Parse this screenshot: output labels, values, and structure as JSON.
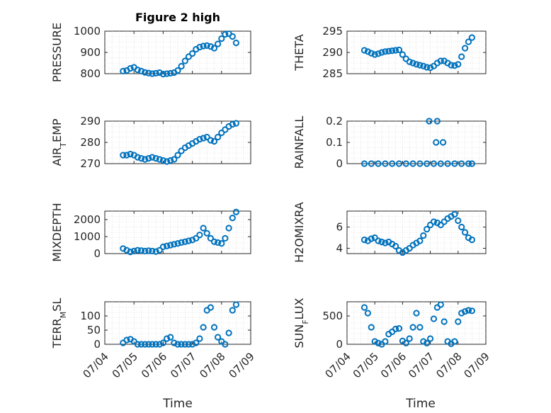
{
  "figure": {
    "title": "Figure 2 high"
  },
  "x_axis": {
    "label": "Time",
    "range": [
      "07/04",
      "07/09"
    ],
    "ticks": [
      "07/04",
      "07/05",
      "07/06",
      "07/07",
      "07/08",
      "07/09"
    ]
  },
  "marker_color": "#0072BD",
  "chart_data": [
    {
      "type": "scatter",
      "ylabel": "PRESSURE",
      "ylim": [
        800,
        1000
      ],
      "yticks": [
        800,
        900,
        1000
      ],
      "grid": true,
      "x": [
        "07/04 15:00",
        "07/04 18:00",
        "07/04 21:00",
        "07/05 00:00",
        "07/05 03:00",
        "07/05 06:00",
        "07/05 09:00",
        "07/05 12:00",
        "07/05 15:00",
        "07/05 18:00",
        "07/05 21:00",
        "07/06 00:00",
        "07/06 03:00",
        "07/06 06:00",
        "07/06 09:00",
        "07/06 12:00",
        "07/06 15:00",
        "07/06 18:00",
        "07/06 21:00",
        "07/07 00:00",
        "07/07 03:00",
        "07/07 06:00",
        "07/07 09:00",
        "07/07 12:00",
        "07/07 15:00",
        "07/07 18:00",
        "07/07 21:00",
        "07/08 00:00",
        "07/08 03:00",
        "07/08 06:00",
        "07/08 09:00",
        "07/08 12:00"
      ],
      "y": [
        812,
        815,
        825,
        830,
        818,
        812,
        806,
        803,
        800,
        802,
        805,
        798,
        800,
        802,
        805,
        815,
        835,
        860,
        880,
        895,
        915,
        925,
        930,
        932,
        928,
        920,
        940,
        965,
        985,
        988,
        975,
        945
      ]
    },
    {
      "type": "scatter",
      "ylabel": "THETA",
      "ylim": [
        285,
        295
      ],
      "yticks": [
        285,
        290,
        295
      ],
      "grid": true,
      "x": [
        "07/04 15:00",
        "07/04 18:00",
        "07/04 21:00",
        "07/05 00:00",
        "07/05 03:00",
        "07/05 06:00",
        "07/05 09:00",
        "07/05 12:00",
        "07/05 15:00",
        "07/05 18:00",
        "07/05 21:00",
        "07/06 00:00",
        "07/06 03:00",
        "07/06 06:00",
        "07/06 09:00",
        "07/06 12:00",
        "07/06 15:00",
        "07/06 18:00",
        "07/06 21:00",
        "07/07 00:00",
        "07/07 03:00",
        "07/07 06:00",
        "07/07 09:00",
        "07/07 12:00",
        "07/07 15:00",
        "07/07 18:00",
        "07/07 21:00",
        "07/08 00:00",
        "07/08 03:00",
        "07/08 06:00",
        "07/08 09:00",
        "07/08 12:00"
      ],
      "y": [
        290.5,
        290.2,
        289.8,
        289.5,
        289.7,
        290.0,
        290.2,
        290.3,
        290.4,
        290.5,
        290.6,
        289.5,
        288.5,
        287.8,
        287.5,
        287.2,
        287.0,
        286.8,
        286.5,
        286.4,
        286.8,
        287.5,
        288.0,
        288.0,
        287.5,
        287.0,
        286.9,
        287.2,
        289.0,
        291.0,
        292.5,
        293.5
      ]
    },
    {
      "type": "scatter",
      "ylabel": "AIR_TEMP",
      "ylim": [
        270,
        290
      ],
      "yticks": [
        270,
        280,
        290
      ],
      "grid": true,
      "x": [
        "07/04 15:00",
        "07/04 18:00",
        "07/04 21:00",
        "07/05 00:00",
        "07/05 03:00",
        "07/05 06:00",
        "07/05 09:00",
        "07/05 12:00",
        "07/05 15:00",
        "07/05 18:00",
        "07/05 21:00",
        "07/06 00:00",
        "07/06 03:00",
        "07/06 06:00",
        "07/06 09:00",
        "07/06 12:00",
        "07/06 15:00",
        "07/06 18:00",
        "07/06 21:00",
        "07/07 00:00",
        "07/07 03:00",
        "07/07 06:00",
        "07/07 09:00",
        "07/07 12:00",
        "07/07 15:00",
        "07/07 18:00",
        "07/07 21:00",
        "07/08 00:00",
        "07/08 03:00",
        "07/08 06:00",
        "07/08 09:00",
        "07/08 12:00"
      ],
      "y": [
        274,
        274,
        274.5,
        274,
        273,
        272.5,
        272,
        272.5,
        273,
        272.5,
        272,
        271.5,
        271,
        271.5,
        272,
        274,
        276,
        277.5,
        278.5,
        279.5,
        280.5,
        281.5,
        282,
        282.5,
        281,
        280.5,
        282.5,
        284.5,
        286,
        287.5,
        288.5,
        289
      ]
    },
    {
      "type": "scatter",
      "ylabel": "RAINFALL",
      "ylim": [
        0,
        0.2
      ],
      "yticks": [
        0,
        0.1,
        0.2
      ],
      "grid": true,
      "x": [
        "07/04 15:00",
        "07/04 21:00",
        "07/05 03:00",
        "07/05 09:00",
        "07/05 15:00",
        "07/05 21:00",
        "07/06 03:00",
        "07/06 09:00",
        "07/06 15:00",
        "07/06 21:00",
        "07/07 03:00",
        "07/07 09:00",
        "07/07 15:00",
        "07/07 21:00",
        "07/08 03:00",
        "07/08 09:00",
        "07/08 12:00",
        "07/06 23:00",
        "07/07 05:00",
        "07/07 06:00",
        "07/07 11:00"
      ],
      "y": [
        0,
        0,
        0,
        0,
        0,
        0,
        0,
        0,
        0,
        0,
        0,
        0,
        0,
        0,
        0,
        0,
        0,
        0.2,
        0.1,
        0.2,
        0.1
      ]
    },
    {
      "type": "scatter",
      "ylabel": "MIXDEPTH",
      "ylim": [
        0,
        2500
      ],
      "yticks": [
        0,
        1000,
        2000
      ],
      "grid": true,
      "x": [
        "07/04 15:00",
        "07/04 18:00",
        "07/04 21:00",
        "07/05 00:00",
        "07/05 03:00",
        "07/05 06:00",
        "07/05 09:00",
        "07/05 12:00",
        "07/05 15:00",
        "07/05 18:00",
        "07/05 21:00",
        "07/06 00:00",
        "07/06 03:00",
        "07/06 06:00",
        "07/06 09:00",
        "07/06 12:00",
        "07/06 15:00",
        "07/06 18:00",
        "07/06 21:00",
        "07/07 00:00",
        "07/07 03:00",
        "07/07 06:00",
        "07/07 09:00",
        "07/07 12:00",
        "07/07 15:00",
        "07/07 18:00",
        "07/07 21:00",
        "07/08 00:00",
        "07/08 03:00",
        "07/08 06:00",
        "07/08 09:00",
        "07/08 12:00"
      ],
      "y": [
        300,
        200,
        100,
        150,
        200,
        180,
        150,
        170,
        150,
        120,
        200,
        400,
        450,
        500,
        550,
        600,
        650,
        700,
        750,
        800,
        900,
        1100,
        1500,
        1200,
        900,
        700,
        650,
        600,
        900,
        1500,
        2100,
        2450
      ]
    },
    {
      "type": "scatter",
      "ylabel": "H2OMIXRA",
      "ylim": [
        3.5,
        7.5
      ],
      "yticks": [
        4,
        6
      ],
      "grid": true,
      "x": [
        "07/04 15:00",
        "07/04 18:00",
        "07/04 21:00",
        "07/05 00:00",
        "07/05 03:00",
        "07/05 06:00",
        "07/05 09:00",
        "07/05 12:00",
        "07/05 15:00",
        "07/05 18:00",
        "07/05 21:00",
        "07/06 00:00",
        "07/06 03:00",
        "07/06 06:00",
        "07/06 09:00",
        "07/06 12:00",
        "07/06 15:00",
        "07/06 18:00",
        "07/06 21:00",
        "07/07 00:00",
        "07/07 03:00",
        "07/07 06:00",
        "07/07 09:00",
        "07/07 12:00",
        "07/07 15:00",
        "07/07 18:00",
        "07/07 21:00",
        "07/08 00:00",
        "07/08 03:00",
        "07/08 06:00",
        "07/08 09:00",
        "07/08 12:00"
      ],
      "y": [
        4.8,
        4.7,
        4.9,
        5.0,
        4.7,
        4.6,
        4.5,
        4.6,
        4.4,
        4.2,
        3.8,
        3.6,
        3.8,
        4.0,
        4.3,
        4.5,
        4.7,
        5.2,
        5.8,
        6.2,
        6.5,
        6.4,
        6.2,
        6.5,
        6.8,
        7.0,
        7.2,
        6.6,
        6.0,
        5.5,
        5.0,
        4.8
      ]
    },
    {
      "type": "scatter",
      "ylabel": "TERR_MSL",
      "ylim": [
        0,
        150
      ],
      "yticks": [
        0,
        50,
        100
      ],
      "grid": true,
      "x": [
        "07/04 15:00",
        "07/04 18:00",
        "07/04 21:00",
        "07/05 00:00",
        "07/05 03:00",
        "07/05 06:00",
        "07/05 09:00",
        "07/05 12:00",
        "07/05 15:00",
        "07/05 18:00",
        "07/05 21:00",
        "07/06 00:00",
        "07/06 03:00",
        "07/06 06:00",
        "07/06 09:00",
        "07/06 12:00",
        "07/06 15:00",
        "07/06 18:00",
        "07/06 21:00",
        "07/07 00:00",
        "07/07 03:00",
        "07/07 06:00",
        "07/07 09:00",
        "07/07 12:00",
        "07/07 15:00",
        "07/07 18:00",
        "07/07 21:00",
        "07/08 00:00",
        "07/08 03:00",
        "07/08 06:00",
        "07/08 09:00",
        "07/08 12:00"
      ],
      "y": [
        5,
        15,
        18,
        10,
        0,
        0,
        0,
        0,
        0,
        0,
        0,
        5,
        20,
        25,
        5,
        0,
        0,
        0,
        0,
        0,
        5,
        20,
        60,
        120,
        130,
        60,
        25,
        10,
        0,
        40,
        120,
        140
      ]
    },
    {
      "type": "scatter",
      "ylabel": "SUN_FLUX",
      "ylim": [
        0,
        750
      ],
      "yticks": [
        0,
        500
      ],
      "grid": true,
      "x": [
        "07/04 15:00",
        "07/04 18:00",
        "07/04 21:00",
        "07/05 00:00",
        "07/05 03:00",
        "07/05 06:00",
        "07/05 09:00",
        "07/05 12:00",
        "07/05 15:00",
        "07/05 18:00",
        "07/05 21:00",
        "07/06 00:00",
        "07/06 03:00",
        "07/06 06:00",
        "07/06 09:00",
        "07/06 12:00",
        "07/06 15:00",
        "07/06 18:00",
        "07/06 21:00",
        "07/07 00:00",
        "07/07 03:00",
        "07/07 06:00",
        "07/07 09:00",
        "07/07 12:00",
        "07/07 15:00",
        "07/07 18:00",
        "07/07 21:00",
        "07/08 00:00",
        "07/08 03:00",
        "07/08 06:00",
        "07/08 09:00",
        "07/08 12:00"
      ],
      "y": [
        650,
        550,
        300,
        50,
        20,
        0,
        50,
        180,
        220,
        270,
        280,
        60,
        20,
        100,
        300,
        550,
        300,
        50,
        20,
        100,
        450,
        650,
        700,
        400,
        50,
        10,
        50,
        400,
        550,
        580,
        600,
        590
      ]
    }
  ]
}
